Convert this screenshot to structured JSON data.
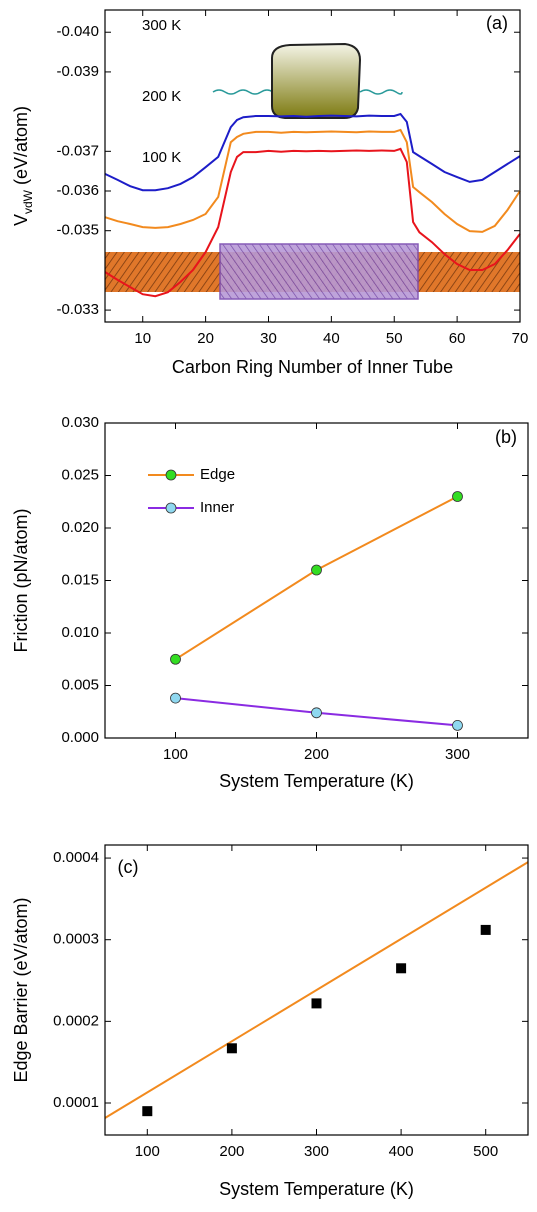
{
  "chart_data": [
    {
      "type": "line",
      "x_label": "Carbon Ring Number of Inner Tube",
      "y_label": [
        "V",
        "vdW",
        " (eV/atom)"
      ],
      "panel_label": "(a)",
      "xlim": [
        4,
        70
      ],
      "xticks": [
        10,
        20,
        30,
        40,
        50,
        60,
        70
      ],
      "ylim": [
        -0.0327,
        -0.04056
      ],
      "yticks": [
        -0.033,
        -0.035,
        -0.036,
        -0.037,
        -0.039,
        {
          "value": -0.04,
          "label": "-0.040"
        }
      ],
      "x": [
        4,
        6,
        8,
        10,
        12,
        14,
        16,
        18,
        20,
        22,
        24,
        25,
        26,
        28,
        30,
        32,
        34,
        36,
        38,
        40,
        42,
        44,
        46,
        48,
        50,
        51,
        52,
        53,
        54,
        56,
        58,
        60,
        62,
        64,
        66,
        68,
        70
      ],
      "series": [
        {
          "name": "300 K",
          "color": "#e8141c",
          "values": [
            -0.03396,
            -0.03376,
            -0.03358,
            -0.0334,
            -0.03335,
            -0.03345,
            -0.03371,
            -0.03401,
            -0.03446,
            -0.03509,
            -0.03648,
            -0.03686,
            -0.03698,
            -0.03698,
            -0.03701,
            -0.03699,
            -0.03701,
            -0.037,
            -0.03701,
            -0.037,
            -0.03701,
            -0.03702,
            -0.03701,
            -0.03702,
            -0.03701,
            -0.03706,
            -0.03673,
            -0.03522,
            -0.03496,
            -0.03471,
            -0.03441,
            -0.03416,
            -0.03401,
            -0.03401,
            -0.03416,
            -0.03451,
            -0.03492
          ]
        },
        {
          "name": "200 K",
          "color": "#f28a1e",
          "values": [
            -0.03534,
            -0.03524,
            -0.03517,
            -0.03509,
            -0.03507,
            -0.03509,
            -0.03517,
            -0.03527,
            -0.03542,
            -0.03585,
            -0.03723,
            -0.03736,
            -0.03744,
            -0.03749,
            -0.03749,
            -0.03747,
            -0.03749,
            -0.03748,
            -0.03749,
            -0.0375,
            -0.03749,
            -0.03748,
            -0.0375,
            -0.03749,
            -0.03749,
            -0.03754,
            -0.03723,
            -0.0361,
            -0.03597,
            -0.03572,
            -0.03542,
            -0.03517,
            -0.03499,
            -0.03497,
            -0.03512,
            -0.03552,
            -0.036
          ]
        },
        {
          "name": "100 K",
          "color": "#1d1dc8",
          "values": [
            -0.03643,
            -0.03628,
            -0.03612,
            -0.03602,
            -0.03602,
            -0.03607,
            -0.03618,
            -0.03635,
            -0.0366,
            -0.03686,
            -0.03761,
            -0.03779,
            -0.03786,
            -0.03789,
            -0.03789,
            -0.03788,
            -0.03789,
            -0.03787,
            -0.03789,
            -0.0379,
            -0.03789,
            -0.03788,
            -0.0379,
            -0.03789,
            -0.03789,
            -0.03794,
            -0.03774,
            -0.03698,
            -0.03688,
            -0.03668,
            -0.03648,
            -0.03635,
            -0.03623,
            -0.03628,
            -0.03648,
            -0.03668,
            -0.03688
          ]
        }
      ]
    },
    {
      "type": "line",
      "x_label": "System Temperature (K)",
      "y_label": "Friction (pN/atom)",
      "panel_label": "(b)",
      "xlim": [
        50,
        350
      ],
      "xticks": [
        100,
        200,
        300
      ],
      "ylim": [
        0,
        0.03
      ],
      "yticks": [
        {
          "value": 0,
          "label": "0.000"
        },
        0.005,
        {
          "value": 0.01,
          "label": "0.010"
        },
        0.015,
        {
          "value": 0.02,
          "label": "0.020"
        },
        0.025,
        {
          "value": 0.03,
          "label": "0.030"
        }
      ],
      "legend": "upper left",
      "x": [
        100,
        200,
        300
      ],
      "series": [
        {
          "name": "Edge",
          "color": "#f28a1e",
          "marker_color": "#33dd22",
          "values": [
            0.0075,
            0.016,
            0.023
          ]
        },
        {
          "name": "Inner",
          "color": "#8a2be2",
          "marker_color": "#8fd8f0",
          "values": [
            0.0038,
            0.0024,
            0.0012
          ]
        }
      ]
    },
    {
      "type": "scatter",
      "x_label": "System Temperature (K)",
      "y_label": "Edge Barrier (eV/atom)",
      "panel_label": "(c)",
      "xlim": [
        50,
        550
      ],
      "xticks": [
        100,
        200,
        300,
        400,
        500
      ],
      "ylim": [
        6.08e-05,
        0.000416
      ],
      "yticks": [
        0.0001,
        0.0002,
        0.0003,
        0.0004
      ],
      "x": [
        100,
        200,
        300,
        400,
        500
      ],
      "series": [
        {
          "color": "#000000",
          "values": [
            9e-05,
            0.000167,
            0.000222,
            0.000265,
            0.000312
          ]
        }
      ],
      "fit_line": {
        "color": "#f28a1e",
        "x": [
          50,
          550
        ],
        "values": [
          8.16e-05,
          0.000395
        ]
      }
    }
  ]
}
